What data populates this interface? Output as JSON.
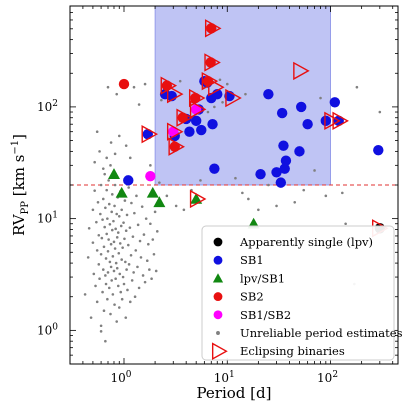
{
  "chart_data": {
    "type": "scatter",
    "xlabel": "Period [d]",
    "ylabel_main": "RV",
    "ylabel_sub": "PP",
    "ylabel_unit": " [km s",
    "ylabel_unit_sup": "−1",
    "ylabel_unit_end": "]",
    "xscale": "log",
    "yscale": "log",
    "xlim": [
      0.3,
      450
    ],
    "ylim": [
      0.5,
      800
    ],
    "x_ticks": [
      {
        "v": 1,
        "b": "10",
        "e": "0"
      },
      {
        "v": 10,
        "b": "10",
        "e": "1"
      },
      {
        "v": 100,
        "b": "10",
        "e": "2"
      }
    ],
    "y_ticks": [
      {
        "v": 1,
        "b": "10",
        "e": "0"
      },
      {
        "v": 10,
        "b": "10",
        "e": "1"
      },
      {
        "v": 100,
        "b": "10",
        "e": "2"
      }
    ],
    "shaded_region": {
      "x": [
        2,
        100
      ],
      "y": [
        20,
        800
      ],
      "color": "#aab0f0"
    },
    "threshold_line": {
      "y": 20,
      "color": "#e03030",
      "style": "dashed"
    },
    "legend": {
      "placement": "lower right",
      "entries": [
        {
          "label": "Apparently single (lpv)",
          "marker": "circle",
          "color": "#000000"
        },
        {
          "label": "SB1",
          "marker": "circle",
          "color": "#1010e0"
        },
        {
          "label": "lpv/SB1",
          "marker": "triangle",
          "color": "#118811"
        },
        {
          "label": "SB2",
          "marker": "circle",
          "color": "#e81010"
        },
        {
          "label": "SB1/SB2",
          "marker": "circle",
          "color": "#ff00ff"
        },
        {
          "label": "Unreliable period estimates",
          "marker": "dot",
          "color": "#808080"
        },
        {
          "label": "Eclipsing binaries",
          "marker": "triangle-right-open",
          "color": "#e81010"
        }
      ]
    },
    "series": [
      {
        "name": "Apparently single (lpv)",
        "marker": "circle",
        "color": "#000000",
        "points": [
          [
            300,
            8.2
          ]
        ]
      },
      {
        "name": "SB1",
        "marker": "circle",
        "color": "#1010e0",
        "points": [
          [
            1.1,
            22
          ],
          [
            1.7,
            57
          ],
          [
            2.5,
            130
          ],
          [
            2.9,
            125
          ],
          [
            3.1,
            55
          ],
          [
            4,
            78
          ],
          [
            4.3,
            60
          ],
          [
            5,
            75
          ],
          [
            5.3,
            95
          ],
          [
            5.6,
            62
          ],
          [
            6,
            170
          ],
          [
            6.4,
            165
          ],
          [
            7,
            120
          ],
          [
            7.2,
            70
          ],
          [
            7.5,
            28
          ],
          [
            8,
            130
          ],
          [
            10.5,
            125
          ],
          [
            21,
            25
          ],
          [
            25,
            130
          ],
          [
            30,
            26
          ],
          [
            33,
            21
          ],
          [
            34,
            88
          ],
          [
            35,
            45
          ],
          [
            36,
            28
          ],
          [
            37,
            33
          ],
          [
            50,
            40
          ],
          [
            52,
            100
          ],
          [
            60,
            70
          ],
          [
            90,
            75
          ],
          [
            110,
            110
          ],
          [
            120,
            75
          ],
          [
            290,
            41
          ]
        ]
      },
      {
        "name": "lpv/SB1",
        "marker": "triangle",
        "color": "#118811",
        "points": [
          [
            0.8,
            25
          ],
          [
            0.95,
            17
          ],
          [
            1.9,
            17
          ],
          [
            2.2,
            14
          ],
          [
            5,
            15
          ],
          [
            18,
            9
          ]
        ]
      },
      {
        "name": "SB2",
        "marker": "circle",
        "color": "#e81010",
        "points": [
          [
            1,
            160
          ],
          [
            2.6,
            155
          ],
          [
            3.1,
            44
          ],
          [
            3.7,
            80
          ],
          [
            4.9,
            120
          ],
          [
            6.5,
            170
          ],
          [
            6.9,
            250
          ],
          [
            7,
            505
          ]
        ]
      },
      {
        "name": "SB1/SB2",
        "marker": "circle",
        "color": "#ff00ff",
        "points": [
          [
            1.8,
            24
          ],
          [
            3,
            60
          ],
          [
            5,
            95
          ]
        ]
      },
      {
        "name": "Eclipsing binaries",
        "marker": "triangle-right-open",
        "color": "#e81010",
        "points": [
          [
            7,
            505
          ],
          [
            6.9,
            250
          ],
          [
            6.5,
            170
          ],
          [
            7.5,
            150
          ],
          [
            11,
            120
          ],
          [
            2.6,
            155
          ],
          [
            3,
            130
          ],
          [
            4.9,
            120
          ],
          [
            3.7,
            80
          ],
          [
            5,
            95
          ],
          [
            3,
            60
          ],
          [
            1.7,
            57
          ],
          [
            3.1,
            44
          ],
          [
            5,
            15
          ],
          [
            50,
            210
          ],
          [
            100,
            75
          ],
          [
            120,
            75
          ],
          [
            290,
            8.2
          ]
        ]
      },
      {
        "name": "Unreliable period estimates",
        "marker": "dot",
        "color": "#808080",
        "points": [
          [
            0.42,
            2.1
          ],
          [
            0.45,
            4.5
          ],
          [
            0.46,
            8.2
          ],
          [
            0.48,
            1.3
          ],
          [
            0.5,
            6.1
          ],
          [
            0.5,
            12
          ],
          [
            0.51,
            3.2
          ],
          [
            0.52,
            17.8
          ],
          [
            0.53,
            2.5
          ],
          [
            0.54,
            9.3
          ],
          [
            0.55,
            5.2
          ],
          [
            0.55,
            1.8
          ],
          [
            0.56,
            14
          ],
          [
            0.57,
            3.9
          ],
          [
            0.57,
            7.1
          ],
          [
            0.58,
            2.9
          ],
          [
            0.59,
            11
          ],
          [
            0.6,
            1.1
          ],
          [
            0.6,
            4.8
          ],
          [
            0.6,
            20
          ],
          [
            0.61,
            6.7
          ],
          [
            0.62,
            2.2
          ],
          [
            0.62,
            9.8
          ],
          [
            0.63,
            3.5
          ],
          [
            0.63,
            15
          ],
          [
            0.64,
            5.6
          ],
          [
            0.64,
            1.5
          ],
          [
            0.65,
            8.4
          ],
          [
            0.65,
            25
          ],
          [
            0.66,
            3.1
          ],
          [
            0.66,
            12.5
          ],
          [
            0.67,
            4.4
          ],
          [
            0.67,
            2.6
          ],
          [
            0.68,
            7.3
          ],
          [
            0.68,
            18
          ],
          [
            0.69,
            1.9
          ],
          [
            0.69,
            10
          ],
          [
            0.7,
            5.1
          ],
          [
            0.7,
            3.3
          ],
          [
            0.71,
            22
          ],
          [
            0.71,
            6.5
          ],
          [
            0.72,
            2.4
          ],
          [
            0.72,
            13.5
          ],
          [
            0.73,
            4.1
          ],
          [
            0.73,
            8.9
          ],
          [
            0.74,
            1.4
          ],
          [
            0.74,
            30
          ],
          [
            0.75,
            5.9
          ],
          [
            0.75,
            3.7
          ],
          [
            0.76,
            11.5
          ],
          [
            0.76,
            2.8
          ],
          [
            0.77,
            7.9
          ],
          [
            0.77,
            16.5
          ],
          [
            0.78,
            4.6
          ],
          [
            0.78,
            2.1
          ],
          [
            0.79,
            9.5
          ],
          [
            0.8,
            3.4
          ],
          [
            0.8,
            6.2
          ],
          [
            0.81,
            13
          ],
          [
            0.81,
            1.7
          ],
          [
            0.82,
            5.4
          ],
          [
            0.82,
            20
          ],
          [
            0.83,
            2.9
          ],
          [
            0.83,
            8.1
          ],
          [
            0.84,
            4
          ],
          [
            0.85,
            11
          ],
          [
            0.85,
            1.2
          ],
          [
            0.86,
            6.8
          ],
          [
            0.86,
            3.6
          ],
          [
            0.87,
            15.5
          ],
          [
            0.88,
            2.5
          ],
          [
            0.88,
            7.5
          ],
          [
            0.89,
            4.9
          ],
          [
            0.9,
            10.5
          ],
          [
            0.9,
            1.6
          ],
          [
            0.91,
            3.2
          ],
          [
            0.92,
            6
          ],
          [
            0.92,
            17.5
          ],
          [
            0.93,
            2.2
          ],
          [
            0.94,
            8.6
          ],
          [
            0.95,
            4.3
          ],
          [
            0.95,
            12
          ],
          [
            0.96,
            1.9
          ],
          [
            0.97,
            5.5
          ],
          [
            0.98,
            3
          ],
          [
            0.99,
            9.2
          ],
          [
            1,
            2.6
          ],
          [
            1.01,
            6.6
          ],
          [
            1.02,
            14.5
          ],
          [
            1.03,
            4.1
          ],
          [
            1.04,
            1.3
          ],
          [
            1.05,
            7.8
          ],
          [
            1.06,
            3.5
          ],
          [
            1.07,
            10.8
          ],
          [
            1.08,
            2.3
          ],
          [
            1.1,
            5.8
          ],
          [
            1.11,
            19
          ],
          [
            1.12,
            3.9
          ],
          [
            1.14,
            8.3
          ],
          [
            1.15,
            1.8
          ],
          [
            1.17,
            4.7
          ],
          [
            1.18,
            13.8
          ],
          [
            1.2,
            2.8
          ],
          [
            1.22,
            6.9
          ],
          [
            1.24,
            3.3
          ],
          [
            1.26,
            11.2
          ],
          [
            1.28,
            2
          ],
          [
            1.3,
            5.2
          ],
          [
            1.32,
            16
          ],
          [
            1.35,
            3.7
          ],
          [
            1.37,
            8.8
          ],
          [
            1.4,
            2.4
          ],
          [
            1.43,
            6.3
          ],
          [
            1.46,
            4.5
          ],
          [
            1.5,
            12.8
          ],
          [
            1.53,
            3.1
          ],
          [
            1.56,
            7.2
          ],
          [
            1.6,
            2.7
          ],
          [
            1.64,
            10
          ],
          [
            1.68,
            4.2
          ],
          [
            1.72,
            5.9
          ],
          [
            1.76,
            3.5
          ],
          [
            1.8,
            9
          ],
          [
            1.85,
            2.9
          ],
          [
            1.9,
            6.5
          ],
          [
            1.95,
            4.8
          ],
          [
            2,
            11.5
          ],
          [
            2.05,
            3.4
          ],
          [
            2.1,
            7.7
          ],
          [
            0.52,
            32
          ],
          [
            0.58,
            40
          ],
          [
            0.63,
            28
          ],
          [
            0.68,
            35
          ],
          [
            0.75,
            48
          ],
          [
            0.82,
            38
          ],
          [
            0.9,
            55
          ],
          [
            1.05,
            45
          ],
          [
            0.6,
            0.98
          ],
          [
            0.66,
            0.8
          ],
          [
            0.7,
            150
          ],
          [
            0.55,
            60
          ],
          [
            1.15,
            35
          ],
          [
            1.25,
            150
          ],
          [
            1.8,
            30
          ],
          [
            2.2,
            21
          ],
          [
            2.6,
            16
          ],
          [
            3.2,
            13
          ],
          [
            3.8,
            12
          ],
          [
            4.5,
            18
          ],
          [
            5.5,
            22
          ],
          [
            6,
            150
          ],
          [
            7.5,
            100
          ],
          [
            8.5,
            175
          ],
          [
            12,
            23
          ],
          [
            14,
            17
          ],
          [
            16,
            15
          ],
          [
            20,
            12
          ],
          [
            25,
            20
          ],
          [
            30,
            13
          ],
          [
            45,
            14
          ],
          [
            55,
            18
          ],
          [
            70,
            27
          ],
          [
            90,
            16
          ],
          [
            130,
            17
          ],
          [
            140,
            9
          ],
          [
            170,
            2.6
          ],
          [
            180,
            150
          ],
          [
            300,
            90
          ],
          [
            1.6,
            160
          ],
          [
            3.5,
            170
          ],
          [
            10,
            160
          ],
          [
            15,
            130
          ],
          [
            9,
            110
          ],
          [
            6.5,
            90
          ],
          [
            1.4,
            105
          ],
          [
            2.3,
            115
          ],
          [
            80,
            120
          ],
          [
            0.85,
            130
          ]
        ]
      }
    ]
  }
}
